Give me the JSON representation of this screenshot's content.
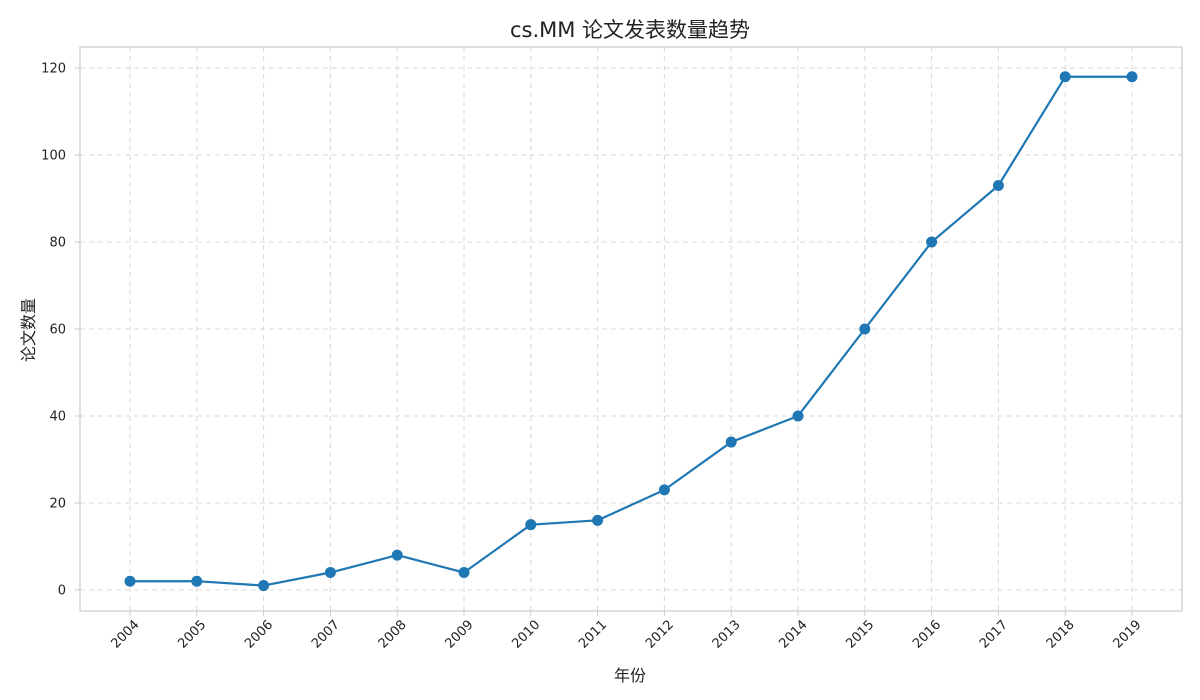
{
  "chart_data": {
    "type": "line",
    "title": "cs.MM 论文发表数量趋势",
    "xlabel": "年份",
    "ylabel": "论文数量",
    "x": [
      "2004",
      "2005",
      "2006",
      "2007",
      "2008",
      "2009",
      "2010",
      "2011",
      "2012",
      "2013",
      "2014",
      "2015",
      "2016",
      "2017",
      "2018",
      "2019"
    ],
    "series": [
      {
        "values": [
          2,
          2,
          1,
          4,
          8,
          4,
          15,
          16,
          23,
          34,
          40,
          60,
          80,
          93,
          118,
          118
        ],
        "color": "#1f77b4",
        "marker": "circle"
      }
    ],
    "yticks": [
      0,
      20,
      40,
      60,
      80,
      100,
      120
    ],
    "ylim": [
      -4.85,
      124.85
    ],
    "xtick_rotation": 45,
    "grid": true,
    "grid_style": "dashed"
  }
}
